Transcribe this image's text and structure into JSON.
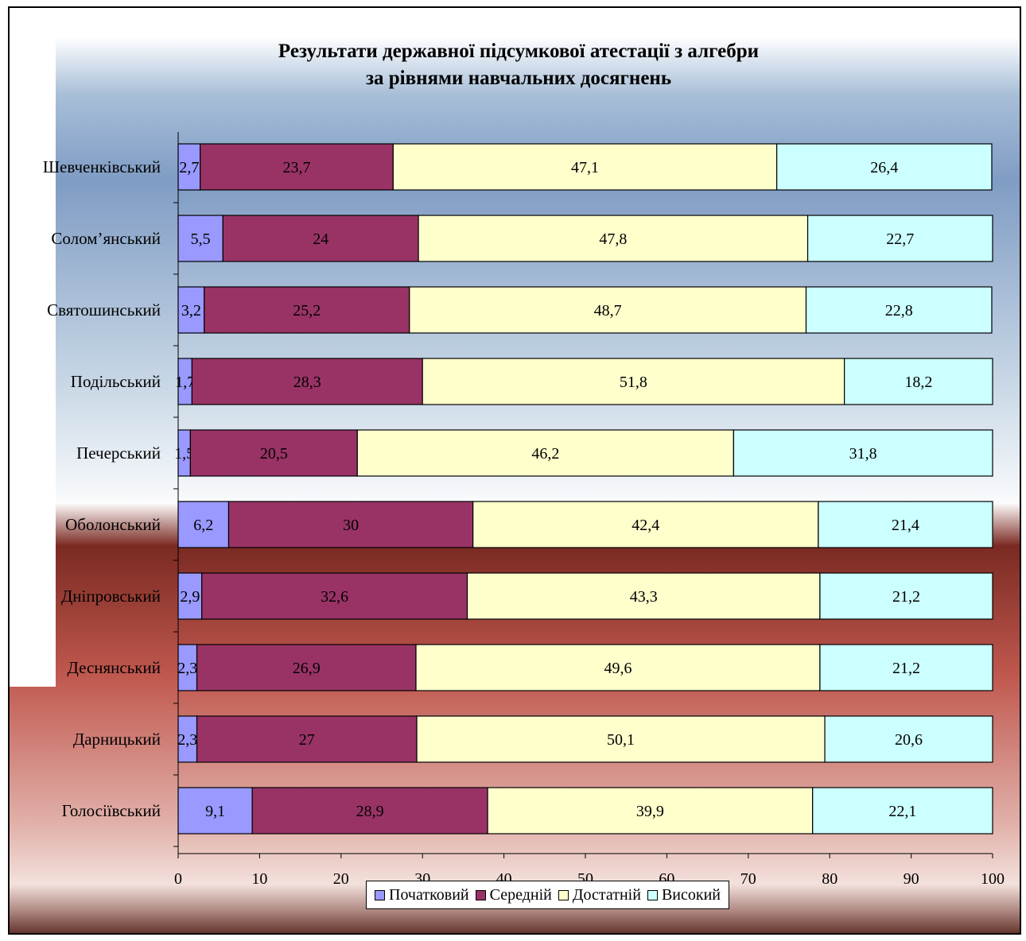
{
  "chart_data": {
    "type": "bar",
    "orientation": "horizontal",
    "stacked": true,
    "title": "Результати державної підсумкової атестації з алгебри",
    "subtitle": "за рівнями  навчальних досягнень",
    "categories": [
      "Шевченківський",
      "Солом’янський",
      "Святошинський",
      "Подільський",
      "Печерський",
      "Оболонський",
      "Дніпровський",
      "Деснянський",
      "Дарницький",
      "Голосіївський"
    ],
    "series": [
      {
        "name": "Початковий",
        "color": "#9999ff",
        "values": [
          2.7,
          5.5,
          3.2,
          1.7,
          1.5,
          6.2,
          2.9,
          2.3,
          2.3,
          9.1
        ]
      },
      {
        "name": "Середній",
        "color": "#993366",
        "values": [
          23.7,
          24,
          25.2,
          28.3,
          20.5,
          30,
          32.6,
          26.9,
          27,
          28.9
        ]
      },
      {
        "name": "Достатній",
        "color": "#ffffcc",
        "values": [
          47.1,
          47.8,
          48.7,
          51.8,
          46.2,
          42.4,
          43.3,
          49.6,
          50.1,
          39.9
        ]
      },
      {
        "name": "Високий",
        "color": "#ccffff",
        "values": [
          26.4,
          22.7,
          22.8,
          18.2,
          31.8,
          21.4,
          21.2,
          21.2,
          20.6,
          22.1
        ]
      }
    ],
    "value_labels": [
      [
        "2,7",
        "23,7",
        "47,1",
        "26,4"
      ],
      [
        "5,5",
        "24",
        "47,8",
        "22,7"
      ],
      [
        "3,2",
        "25,2",
        "48,7",
        "22,8"
      ],
      [
        "1,7",
        "28,3",
        "51,8",
        "18,2"
      ],
      [
        "1,5",
        "20,5",
        "46,2",
        "31,8"
      ],
      [
        "6,2",
        "30",
        "42,4",
        "21,4"
      ],
      [
        "2,9",
        "32,6",
        "43,3",
        "21,2"
      ],
      [
        "2,3",
        "26,9",
        "49,6",
        "21,2"
      ],
      [
        "2,3",
        "27",
        "50,1",
        "20,6"
      ],
      [
        "9,1",
        "28,9",
        "39,9",
        "22,1"
      ]
    ],
    "xlim": [
      0,
      100
    ],
    "x_ticks": [
      0,
      10,
      20,
      30,
      40,
      50,
      60,
      70,
      80,
      90,
      100
    ],
    "grid": false,
    "legend_position": "bottom"
  }
}
